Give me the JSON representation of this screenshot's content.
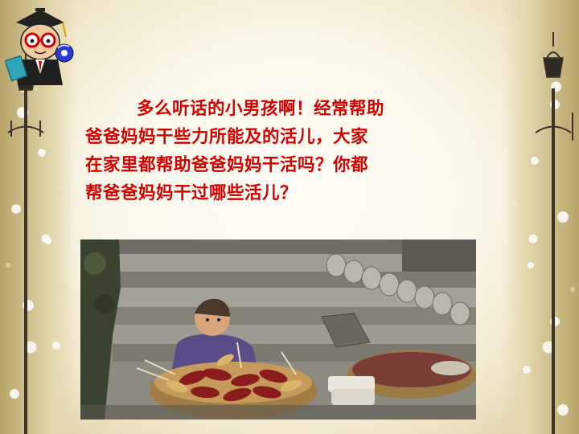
{
  "slide": {
    "paragraph_lines": [
      "多么听话的小男孩啊！经常帮助",
      "爸爸妈妈干些力所能及的活儿，大家",
      "在家里都帮助爸爸妈妈干活吗？你都",
      "帮爸爸妈妈干过哪些活儿？"
    ]
  },
  "colors": {
    "text": "#d40000",
    "background": "#f6f1df"
  },
  "icons": {
    "mascot": "teacher-mascot-icon",
    "lamps": "street-lamp-icon"
  }
}
